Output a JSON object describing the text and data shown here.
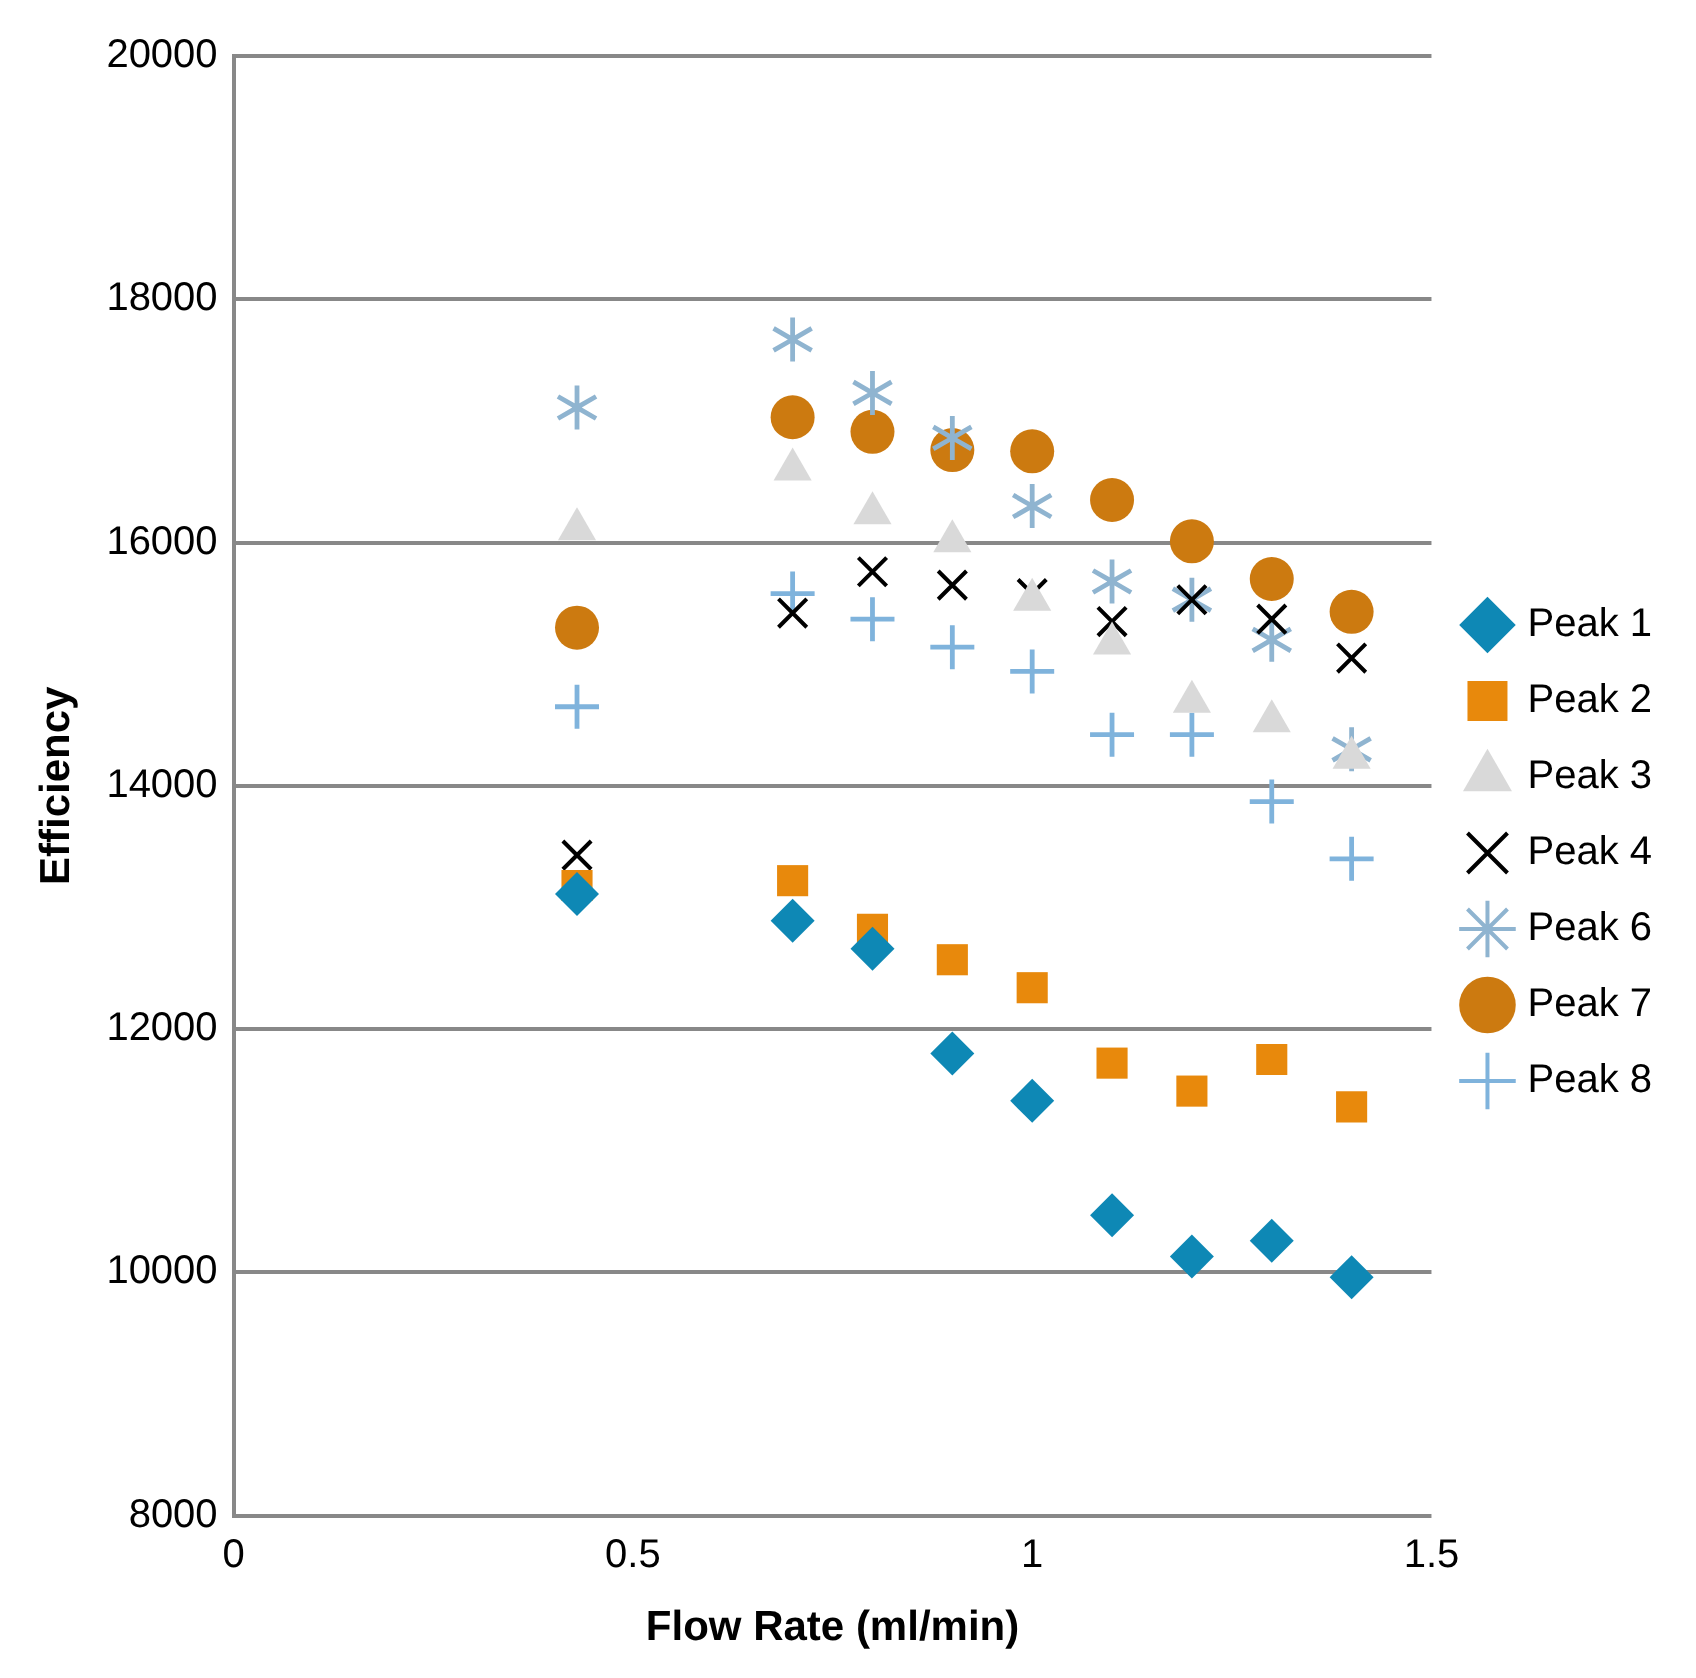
{
  "chart_data": {
    "type": "scatter",
    "xlabel": "Flow Rate (ml/min)",
    "ylabel": "Efficiency",
    "x": [
      0.43,
      0.7,
      0.8,
      0.9,
      1.0,
      1.1,
      1.2,
      1.3,
      1.4
    ],
    "xlim": [
      0,
      1.5
    ],
    "xticks": [
      0,
      0.5,
      1,
      1.5
    ],
    "ylim": [
      8000,
      20000
    ],
    "yticks": [
      8000,
      10000,
      12000,
      14000,
      16000,
      18000,
      20000
    ],
    "grid": "y",
    "legend": "right",
    "series": [
      {
        "name": "Peak 1",
        "color": "#0e88b5",
        "marker": "diamond",
        "values": [
          13110,
          12890,
          12660,
          11800,
          11410,
          10470,
          10130,
          10260,
          9960
        ]
      },
      {
        "name": "Peak 2",
        "color": "#e8890c",
        "marker": "square",
        "values": [
          13180,
          13220,
          12820,
          12570,
          12340,
          11720,
          11490,
          11750,
          11360
        ]
      },
      {
        "name": "Peak 3",
        "color": "#d9d9d9",
        "marker": "triangle",
        "values": [
          16110,
          16600,
          16240,
          16010,
          15530,
          15170,
          14690,
          14530,
          14230
        ]
      },
      {
        "name": "Peak 4",
        "color": "#000000",
        "values": [
          13430,
          15420,
          15760,
          15650,
          15580,
          15350,
          15530,
          15370,
          15050
        ]
      },
      {
        "name": "Peak 6",
        "color": "#8fb4d0",
        "marker": "star",
        "values": [
          17110,
          17670,
          17230,
          16860,
          16300,
          15680,
          15530,
          15200,
          14300
        ]
      },
      {
        "name": "Peak 7",
        "color": "#cc7a10",
        "marker": "circle",
        "values": [
          15300,
          17030,
          16910,
          16760,
          16750,
          16350,
          16010,
          15700,
          15430
        ]
      },
      {
        "name": "Peak 8",
        "color": "#7fb3dc",
        "marker": "cross",
        "values": [
          14650,
          15580,
          15370,
          15140,
          14940,
          14420,
          14420,
          13870,
          13400
        ]
      }
    ]
  }
}
